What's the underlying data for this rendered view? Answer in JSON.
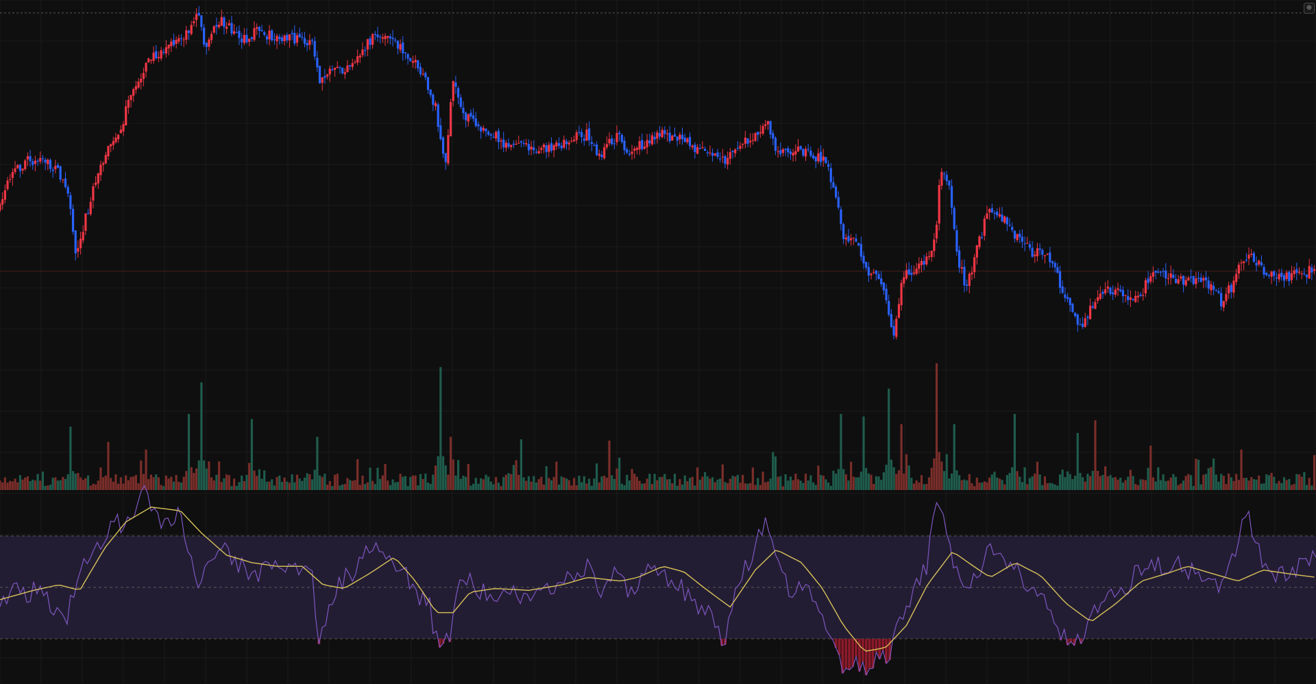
{
  "theme": {
    "background": "#0f0f0f",
    "grid": "#1b1b1b",
    "up": "#f23645",
    "down": "#2962ff",
    "vol_up": "#7a2e2a",
    "vol_down": "#1f5c4c",
    "rsi_line": "#7e57c2",
    "rsi_ma": "#d9c35a",
    "rsi_band": "#231d33",
    "rsi_oversold_fill": "#8b1a2a",
    "level_line": "#5a5a5a",
    "ref_line": "#4a1f1f"
  },
  "corner_button": {
    "icon": "plus-in-circle-icon"
  },
  "chart_data": [
    {
      "type": "candlestick",
      "panel": "price",
      "close_path": [
        [
          0,
          58
        ],
        [
          8,
          52
        ],
        [
          18,
          47
        ],
        [
          35,
          44
        ],
        [
          55,
          45
        ],
        [
          70,
          47
        ],
        [
          82,
          54
        ],
        [
          90,
          70
        ],
        [
          100,
          62
        ],
        [
          112,
          52
        ],
        [
          125,
          42
        ],
        [
          140,
          38
        ],
        [
          150,
          30
        ],
        [
          160,
          24
        ],
        [
          172,
          18
        ],
        [
          185,
          14
        ],
        [
          200,
          12
        ],
        [
          215,
          10
        ],
        [
          228,
          6
        ],
        [
          235,
          2
        ],
        [
          245,
          12
        ],
        [
          262,
          4
        ],
        [
          280,
          8
        ],
        [
          295,
          11
        ],
        [
          305,
          7
        ],
        [
          322,
          9
        ],
        [
          340,
          10
        ],
        [
          360,
          10
        ],
        [
          372,
          11
        ],
        [
          380,
          22
        ],
        [
          390,
          20
        ],
        [
          405,
          19
        ],
        [
          420,
          18
        ],
        [
          438,
          11
        ],
        [
          450,
          9
        ],
        [
          465,
          10
        ],
        [
          475,
          12
        ],
        [
          490,
          15
        ],
        [
          505,
          21
        ],
        [
          520,
          30
        ],
        [
          530,
          46
        ],
        [
          540,
          22
        ],
        [
          552,
          31
        ],
        [
          566,
          34
        ],
        [
          580,
          35
        ],
        [
          600,
          39
        ],
        [
          620,
          40
        ],
        [
          640,
          41
        ],
        [
          660,
          41
        ],
        [
          680,
          38
        ],
        [
          700,
          37
        ],
        [
          715,
          43
        ],
        [
          735,
          37
        ],
        [
          750,
          42
        ],
        [
          770,
          39
        ],
        [
          790,
          37
        ],
        [
          810,
          38
        ],
        [
          830,
          41
        ],
        [
          850,
          42
        ],
        [
          865,
          45
        ],
        [
          880,
          40
        ],
        [
          900,
          37
        ],
        [
          915,
          33
        ],
        [
          925,
          42
        ],
        [
          935,
          41
        ],
        [
          955,
          41
        ],
        [
          970,
          43
        ],
        [
          985,
          45
        ],
        [
          995,
          55
        ],
        [
          1005,
          65
        ],
        [
          1015,
          67
        ],
        [
          1025,
          70
        ],
        [
          1035,
          78
        ],
        [
          1045,
          75
        ],
        [
          1055,
          83
        ],
        [
          1065,
          93
        ],
        [
          1075,
          77
        ],
        [
          1090,
          75
        ],
        [
          1105,
          72
        ],
        [
          1115,
          66
        ],
        [
          1120,
          46
        ],
        [
          1130,
          50
        ],
        [
          1140,
          70
        ],
        [
          1150,
          80
        ],
        [
          1160,
          73
        ],
        [
          1175,
          60
        ],
        [
          1190,
          58
        ],
        [
          1200,
          63
        ],
        [
          1215,
          66
        ],
        [
          1230,
          70
        ],
        [
          1250,
          72
        ],
        [
          1262,
          78
        ],
        [
          1275,
          86
        ],
        [
          1290,
          92
        ],
        [
          1300,
          85
        ],
        [
          1315,
          82
        ],
        [
          1330,
          80
        ],
        [
          1345,
          83
        ],
        [
          1355,
          84
        ],
        [
          1370,
          77
        ],
        [
          1390,
          77
        ],
        [
          1410,
          78
        ],
        [
          1425,
          79
        ],
        [
          1440,
          79
        ],
        [
          1455,
          84
        ],
        [
          1470,
          79
        ],
        [
          1480,
          72
        ],
        [
          1490,
          70
        ],
        [
          1500,
          74
        ],
        [
          1520,
          77
        ],
        [
          1540,
          77
        ],
        [
          1568,
          75
        ]
      ],
      "y_range": [
        0,
        100
      ],
      "reference_levels": [
        {
          "y": 2.5,
          "style": "dashed"
        },
        {
          "y": 75.5,
          "style": "solid"
        }
      ]
    },
    {
      "type": "bar",
      "panel": "volume",
      "spikes": [
        [
          85,
          50
        ],
        [
          128,
          38
        ],
        [
          173,
          32
        ],
        [
          226,
          60
        ],
        [
          240,
          85
        ],
        [
          300,
          56
        ],
        [
          378,
          42
        ],
        [
          525,
          97
        ],
        [
          537,
          42
        ],
        [
          620,
          40
        ],
        [
          727,
          39
        ],
        [
          920,
          30
        ],
        [
          1002,
          60
        ],
        [
          1030,
          58
        ],
        [
          1060,
          80
        ],
        [
          1073,
          52
        ],
        [
          1117,
          100
        ],
        [
          1138,
          52
        ],
        [
          1208,
          60
        ],
        [
          1285,
          45
        ],
        [
          1305,
          55
        ],
        [
          1370,
          35
        ],
        [
          1480,
          32
        ],
        [
          1568,
          6
        ]
      ],
      "y_range": [
        0,
        100
      ]
    },
    {
      "type": "line",
      "panel": "rsi",
      "rsi": [
        [
          0,
          38
        ],
        [
          15,
          47
        ],
        [
          30,
          44
        ],
        [
          45,
          50
        ],
        [
          60,
          40
        ],
        [
          80,
          33
        ],
        [
          95,
          58
        ],
        [
          110,
          70
        ],
        [
          125,
          75
        ],
        [
          135,
          86
        ],
        [
          150,
          80
        ],
        [
          165,
          92
        ],
        [
          175,
          105
        ],
        [
          185,
          85
        ],
        [
          200,
          84
        ],
        [
          215,
          88
        ],
        [
          225,
          70
        ],
        [
          235,
          48
        ],
        [
          250,
          62
        ],
        [
          262,
          74
        ],
        [
          280,
          62
        ],
        [
          300,
          55
        ],
        [
          320,
          60
        ],
        [
          340,
          59
        ],
        [
          360,
          57
        ],
        [
          372,
          60
        ],
        [
          380,
          15
        ],
        [
          390,
          38
        ],
        [
          405,
          52
        ],
        [
          420,
          57
        ],
        [
          435,
          70
        ],
        [
          450,
          68
        ],
        [
          465,
          65
        ],
        [
          480,
          58
        ],
        [
          495,
          45
        ],
        [
          510,
          42
        ],
        [
          525,
          10
        ],
        [
          535,
          22
        ],
        [
          550,
          55
        ],
        [
          565,
          50
        ],
        [
          580,
          45
        ],
        [
          600,
          47
        ],
        [
          620,
          45
        ],
        [
          640,
          46
        ],
        [
          660,
          49
        ],
        [
          680,
          54
        ],
        [
          700,
          62
        ],
        [
          715,
          40
        ],
        [
          735,
          58
        ],
        [
          750,
          44
        ],
        [
          770,
          60
        ],
        [
          790,
          55
        ],
        [
          810,
          50
        ],
        [
          830,
          38
        ],
        [
          850,
          35
        ],
        [
          862,
          18
        ],
        [
          880,
          50
        ],
        [
          900,
          70
        ],
        [
          912,
          85
        ],
        [
          925,
          65
        ],
        [
          940,
          45
        ],
        [
          955,
          50
        ],
        [
          970,
          40
        ],
        [
          985,
          30
        ],
        [
          998,
          10
        ],
        [
          1012,
          2
        ],
        [
          1025,
          8
        ],
        [
          1035,
          0
        ],
        [
          1045,
          10
        ],
        [
          1060,
          12
        ],
        [
          1075,
          35
        ],
        [
          1090,
          48
        ],
        [
          1105,
          60
        ],
        [
          1115,
          95
        ],
        [
          1125,
          85
        ],
        [
          1135,
          60
        ],
        [
          1150,
          45
        ],
        [
          1165,
          55
        ],
        [
          1180,
          72
        ],
        [
          1195,
          65
        ],
        [
          1210,
          58
        ],
        [
          1225,
          50
        ],
        [
          1240,
          45
        ],
        [
          1255,
          32
        ],
        [
          1270,
          20
        ],
        [
          1285,
          18
        ],
        [
          1295,
          24
        ],
        [
          1310,
          42
        ],
        [
          1325,
          50
        ],
        [
          1340,
          44
        ],
        [
          1355,
          58
        ],
        [
          1370,
          65
        ],
        [
          1385,
          60
        ],
        [
          1400,
          62
        ],
        [
          1415,
          58
        ],
        [
          1430,
          55
        ],
        [
          1445,
          52
        ],
        [
          1460,
          50
        ],
        [
          1475,
          72
        ],
        [
          1485,
          92
        ],
        [
          1495,
          72
        ],
        [
          1510,
          60
        ],
        [
          1525,
          55
        ],
        [
          1540,
          58
        ],
        [
          1555,
          60
        ],
        [
          1568,
          66
        ]
      ],
      "rsi_ma": [
        [
          0,
          42
        ],
        [
          40,
          47
        ],
        [
          70,
          50
        ],
        [
          95,
          47
        ],
        [
          125,
          70
        ],
        [
          150,
          84
        ],
        [
          180,
          92
        ],
        [
          215,
          90
        ],
        [
          240,
          78
        ],
        [
          270,
          66
        ],
        [
          300,
          62
        ],
        [
          330,
          60
        ],
        [
          360,
          60
        ],
        [
          385,
          50
        ],
        [
          410,
          48
        ],
        [
          440,
          56
        ],
        [
          470,
          65
        ],
        [
          495,
          52
        ],
        [
          520,
          35
        ],
        [
          540,
          35
        ],
        [
          560,
          46
        ],
        [
          590,
          48
        ],
        [
          630,
          47
        ],
        [
          670,
          50
        ],
        [
          700,
          54
        ],
        [
          740,
          52
        ],
        [
          760,
          54
        ],
        [
          790,
          60
        ],
        [
          815,
          57
        ],
        [
          840,
          48
        ],
        [
          870,
          38
        ],
        [
          900,
          58
        ],
        [
          925,
          69
        ],
        [
          955,
          62
        ],
        [
          980,
          48
        ],
        [
          1005,
          28
        ],
        [
          1030,
          14
        ],
        [
          1055,
          16
        ],
        [
          1080,
          28
        ],
        [
          1105,
          50
        ],
        [
          1135,
          68
        ],
        [
          1160,
          60
        ],
        [
          1180,
          54
        ],
        [
          1210,
          62
        ],
        [
          1240,
          55
        ],
        [
          1270,
          40
        ],
        [
          1300,
          30
        ],
        [
          1330,
          40
        ],
        [
          1360,
          52
        ],
        [
          1390,
          56
        ],
        [
          1415,
          60
        ],
        [
          1445,
          56
        ],
        [
          1475,
          52
        ],
        [
          1505,
          58
        ],
        [
          1535,
          56
        ],
        [
          1568,
          54
        ]
      ],
      "overbought": 70,
      "oversold": 30,
      "midline": 50,
      "y_range": [
        0,
        100
      ]
    }
  ]
}
